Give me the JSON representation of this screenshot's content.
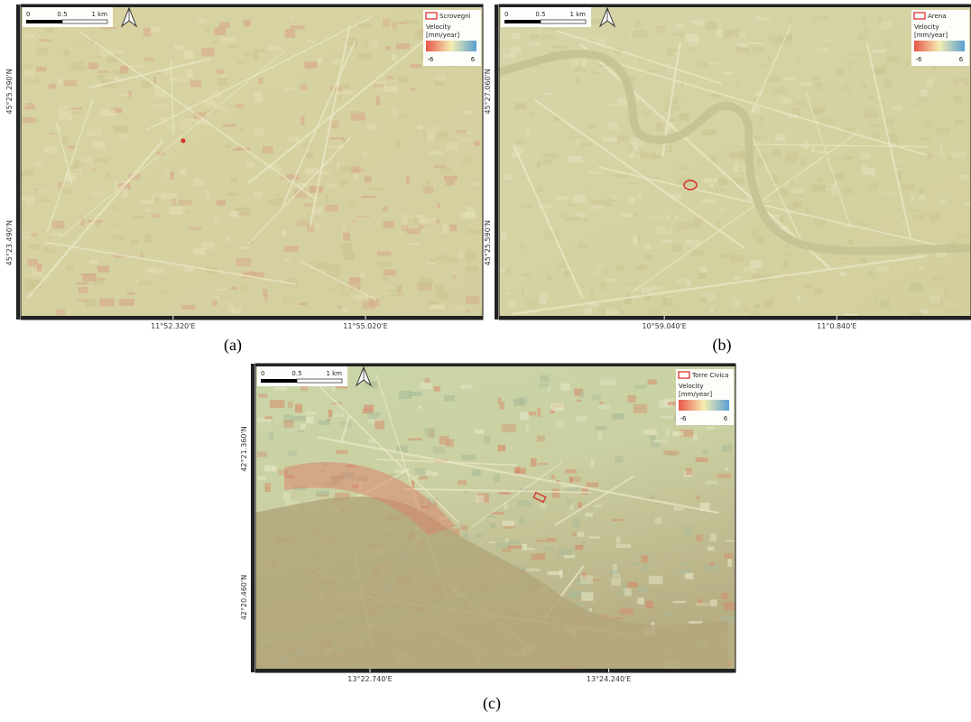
{
  "panels": [
    {
      "label": "(a)",
      "scale_bar": [
        "0",
        "0.5",
        "1 km"
      ],
      "legend": {
        "site": "Scrovegni",
        "title": "Velocity",
        "unit": "[mm/year]",
        "min": -6,
        "max": 6
      },
      "lat_labels": [
        "45°25.290'N",
        "45°23.490'N"
      ],
      "lon_labels": [
        "11°52.320'E",
        "11°55.020'E"
      ]
    },
    {
      "label": "(b)",
      "scale_bar": [
        "0",
        "0.5",
        "1 km"
      ],
      "legend": {
        "site": "Arena",
        "title": "Velocity",
        "unit": "[mm/year]",
        "min": -6,
        "max": 6
      },
      "lat_labels": [
        "45°27.060'N",
        "45°25.590'N"
      ],
      "lon_labels": [
        "10°59.040'E",
        "11°0.840'E"
      ]
    },
    {
      "label": "(c)",
      "scale_bar": [
        "0",
        "0.5",
        "1 km"
      ],
      "legend": {
        "site": "Torre Civica",
        "title": "Velocity",
        "unit": "[mm/year]",
        "min": -6,
        "max": 6
      },
      "lat_labels": [
        "42°21.360'N",
        "42°20.460'N"
      ],
      "lon_labels": [
        "13°22.740'E",
        "13°24.240'E"
      ]
    }
  ]
}
